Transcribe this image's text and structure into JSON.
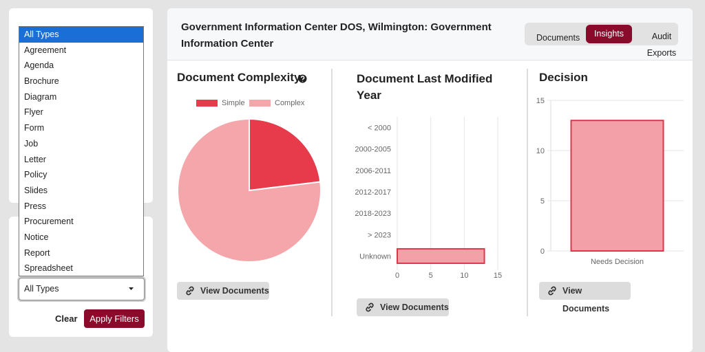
{
  "sidebar": {
    "type_options": [
      "All Types",
      "Agreement",
      "Agenda",
      "Brochure",
      "Diagram",
      "Flyer",
      "Form",
      "Job",
      "Letter",
      "Policy",
      "Slides",
      "Press",
      "Procurement",
      "Notice",
      "Report",
      "Spreadsheet"
    ],
    "selected_type": "All Types",
    "clear": "Clear",
    "apply": "Apply Filters"
  },
  "header": {
    "title": "Government Information Center DOS, Wilmington: Government Information Center",
    "tabs": [
      "Documents",
      "Insights",
      "Audit Exports"
    ],
    "active_tab": 1
  },
  "view_documents": "View Documents",
  "chart_data": [
    {
      "type": "pie",
      "title": "Document Complexity",
      "categories": [
        "Simple",
        "Complex"
      ],
      "values": [
        3,
        10
      ],
      "colors": [
        "#e73a4b",
        "#f4a6ab"
      ],
      "legend": "top"
    },
    {
      "type": "bar",
      "horizontal": true,
      "title": "Document Last Modified Year",
      "categories": [
        "< 2000",
        "2000-2005",
        "2006-2011",
        "2012-2017",
        "2018-2023",
        "> 2023",
        "Unknown"
      ],
      "values": [
        0,
        0,
        0,
        0,
        0,
        0,
        13
      ],
      "color": "#f4a0a8",
      "xlim": [
        0,
        15
      ],
      "xticks": [
        0,
        5,
        10,
        15
      ],
      "grid": true
    },
    {
      "type": "bar",
      "title": "Decision",
      "categories": [
        "Needs Decision"
      ],
      "values": [
        13
      ],
      "color": "#f4a0a8",
      "ylim": [
        0,
        15
      ],
      "yticks": [
        0,
        5,
        10,
        15
      ],
      "grid": true
    }
  ]
}
